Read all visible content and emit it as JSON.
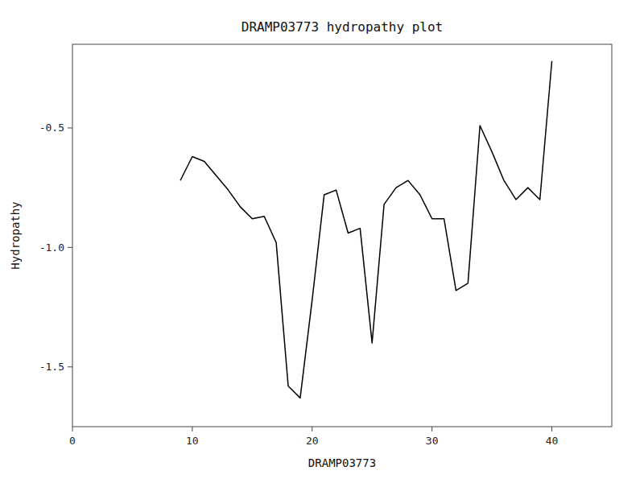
{
  "chart_data": {
    "type": "line",
    "title": "DRAMP03773 hydropathy plot",
    "xlabel": "DRAMP03773",
    "ylabel": "Hydropathy",
    "x": [
      9,
      10,
      11,
      12,
      13,
      14,
      15,
      16,
      17,
      18,
      19,
      20,
      21,
      22,
      23,
      24,
      25,
      26,
      27,
      28,
      29,
      30,
      31,
      32,
      33,
      34,
      35,
      36,
      37,
      38,
      39,
      40
    ],
    "values": [
      -0.72,
      -0.62,
      -0.64,
      -0.7,
      -0.76,
      -0.83,
      -0.88,
      -0.87,
      -0.98,
      -1.58,
      -1.63,
      -1.22,
      -0.78,
      -0.76,
      -0.94,
      -0.92,
      -1.4,
      -0.82,
      -0.75,
      -0.72,
      -0.78,
      -0.88,
      -0.88,
      -1.18,
      -1.15,
      -0.49,
      -0.6,
      -0.72,
      -0.8,
      -0.75,
      -0.8,
      -0.22
    ],
    "color": "#000000",
    "xlim": [
      0,
      45
    ],
    "ylim": [
      -1.75,
      -0.15
    ],
    "xticks": [
      0,
      10,
      20,
      30,
      40
    ],
    "yticks": [
      -0.5,
      {
        "value": -1.0,
        "label": "-1.0"
      },
      -1.5
    ],
    "grid": false
  }
}
